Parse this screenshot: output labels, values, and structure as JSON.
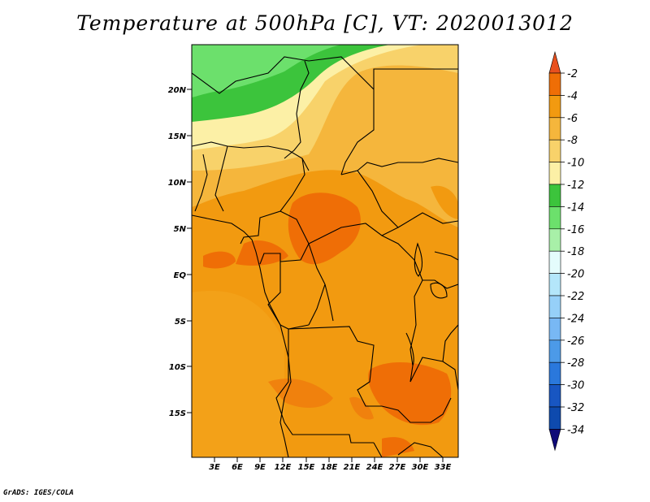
{
  "title": "Temperature at 500hPa [C], VT: 2020013012",
  "footer": "GrADS: IGES/COLA",
  "lat_ticks": [
    "20N",
    "15N",
    "10N",
    "5N",
    "EQ",
    "5S",
    "10S",
    "15S"
  ],
  "lon_ticks": [
    "3E",
    "6E",
    "9E",
    "12E",
    "15E",
    "18E",
    "21E",
    "24E",
    "27E",
    "30E",
    "33E"
  ],
  "colorbar": {
    "labels": [
      "-2",
      "-4",
      "-6",
      "-8",
      "-10",
      "-12",
      "-14",
      "-16",
      "-18",
      "-20",
      "-22",
      "-24",
      "-26",
      "-28",
      "-30",
      "-32",
      "-34"
    ],
    "colors": [
      "#e8501e",
      "#ef6e06",
      "#f29a10",
      "#f5b63c",
      "#f8d26a",
      "#fcf0a6",
      "#3cc43c",
      "#6ce06c",
      "#a8f0a8",
      "#e4fcfc",
      "#b4e6fa",
      "#96d0f8",
      "#78b8f4",
      "#4c9ae8",
      "#2a78dc",
      "#1856c2",
      "#0e4aae",
      "#0f0a78"
    ]
  }
}
